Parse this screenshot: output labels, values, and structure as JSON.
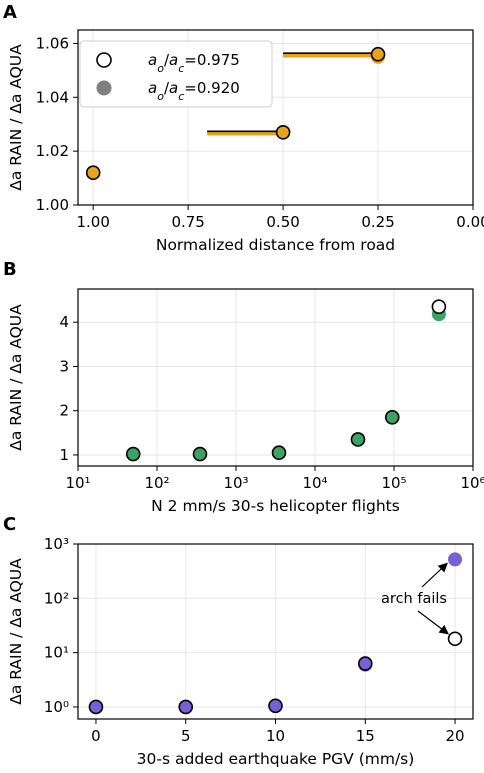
{
  "chart_data": [
    {
      "panel": "A",
      "type": "scatter",
      "xlabel": "Normalized distance from road",
      "ylabel": "Δa RAIN / Δa AQUA",
      "xlim": [
        1.04,
        0.0
      ],
      "ylim": [
        1.0,
        1.065
      ],
      "x_inverted": true,
      "grid": true,
      "xticks": [
        "1.00",
        "0.75",
        "0.50",
        "0.25",
        "0.00"
      ],
      "xtick_values": [
        1.0,
        0.75,
        0.5,
        0.25,
        0.0
      ],
      "yticks": [
        "1.00",
        "1.02",
        "1.04",
        "1.06"
      ],
      "ytick_values": [
        1.0,
        1.02,
        1.04,
        1.06
      ],
      "legend": {
        "placement": "upper-left",
        "entries": [
          {
            "label": "a_o/a_c=0.975",
            "marker": "open-circle"
          },
          {
            "label": "a_o/a_c=0.920",
            "marker": "filled-circle-gray"
          }
        ]
      },
      "series": [
        {
          "name": "a_o/a_c=0.975",
          "color": "#e8a31d",
          "points": [
            {
              "x": 1.0,
              "y": 1.012
            },
            {
              "x": 0.5,
              "y": 1.027
            },
            {
              "x": 0.25,
              "y": 1.056
            }
          ]
        },
        {
          "name": "a_o/a_c=0.920",
          "color": "#e8a31d",
          "points": [
            {
              "x": 1.0,
              "y": 1.012
            },
            {
              "x": 0.5,
              "y": 1.027
            },
            {
              "x": 0.25,
              "y": 1.055
            }
          ]
        }
      ],
      "range_bars": [
        {
          "x_from": 0.7,
          "x_to": 0.5,
          "y": 1.027
        },
        {
          "x_from": 0.5,
          "x_to": 0.25,
          "y": 1.056
        }
      ]
    },
    {
      "panel": "B",
      "type": "scatter",
      "xlabel": "N 2 mm/s 30-s helicopter flights",
      "ylabel": "Δa RAIN / Δa AQUA",
      "xscale": "log",
      "xlim": [
        10,
        1000000
      ],
      "ylim": [
        0.75,
        4.75
      ],
      "grid": true,
      "xticks": [
        "10¹",
        "10²",
        "10³",
        "10⁴",
        "10⁵",
        "10⁶"
      ],
      "xtick_values": [
        10,
        100,
        1000,
        10000,
        100000,
        1000000
      ],
      "yticks": [
        "1",
        "2",
        "3",
        "4"
      ],
      "ytick_values": [
        1,
        2,
        3,
        4
      ],
      "series": [
        {
          "name": "a_o/a_c=0.975",
          "color": "#3aa363",
          "points": [
            {
              "x": 50,
              "y": 1.02
            },
            {
              "x": 350,
              "y": 1.02
            },
            {
              "x": 3500,
              "y": 1.05
            },
            {
              "x": 35000,
              "y": 1.35
            },
            {
              "x": 95000,
              "y": 1.85
            },
            {
              "x": 370000,
              "y": 4.35
            }
          ]
        },
        {
          "name": "a_o/a_c=0.920",
          "color": "#3aa363",
          "points": [
            {
              "x": 50,
              "y": 1.02
            },
            {
              "x": 350,
              "y": 1.02
            },
            {
              "x": 3500,
              "y": 1.05
            },
            {
              "x": 35000,
              "y": 1.35
            },
            {
              "x": 95000,
              "y": 1.85
            },
            {
              "x": 370000,
              "y": 4.18
            }
          ]
        }
      ]
    },
    {
      "panel": "C",
      "type": "scatter",
      "xlabel": "30-s added earthquake PGV (mm/s)",
      "ylabel": "Δa RAIN / Δa AQUA",
      "yscale": "log",
      "xlim": [
        -1,
        21
      ],
      "ylim": [
        0.6,
        1000
      ],
      "grid": true,
      "xticks": [
        "0",
        "5",
        "10",
        "15",
        "20"
      ],
      "xtick_values": [
        0,
        5,
        10,
        15,
        20
      ],
      "yticks": [
        "10⁰",
        "10¹",
        "10²",
        "10³"
      ],
      "ytick_values": [
        1,
        10,
        100,
        1000
      ],
      "annotation": "arch fails",
      "series": [
        {
          "name": "a_o/a_c=0.975",
          "color": "#7b5fd6",
          "points": [
            {
              "x": 0,
              "y": 1.0
            },
            {
              "x": 5,
              "y": 1.0
            },
            {
              "x": 10,
              "y": 1.05
            },
            {
              "x": 15,
              "y": 6.3
            },
            {
              "x": 20,
              "y": 18
            }
          ]
        },
        {
          "name": "a_o/a_c=0.920",
          "color": "#7b5fd6",
          "points": [
            {
              "x": 0,
              "y": 1.0
            },
            {
              "x": 5,
              "y": 1.0
            },
            {
              "x": 10,
              "y": 1.05
            },
            {
              "x": 15,
              "y": 6.0
            },
            {
              "x": 20,
              "y": 520
            }
          ]
        }
      ]
    }
  ],
  "panel_labels": [
    "A",
    "B",
    "C"
  ],
  "legend_text": {
    "entry1": {
      "a": "a",
      "asub": "o",
      "c": "a",
      "csub": "c",
      "value": "=0.975"
    },
    "entry2": {
      "a": "a",
      "asub": "o",
      "c": "a",
      "csub": "c",
      "value": "=0.920"
    }
  }
}
